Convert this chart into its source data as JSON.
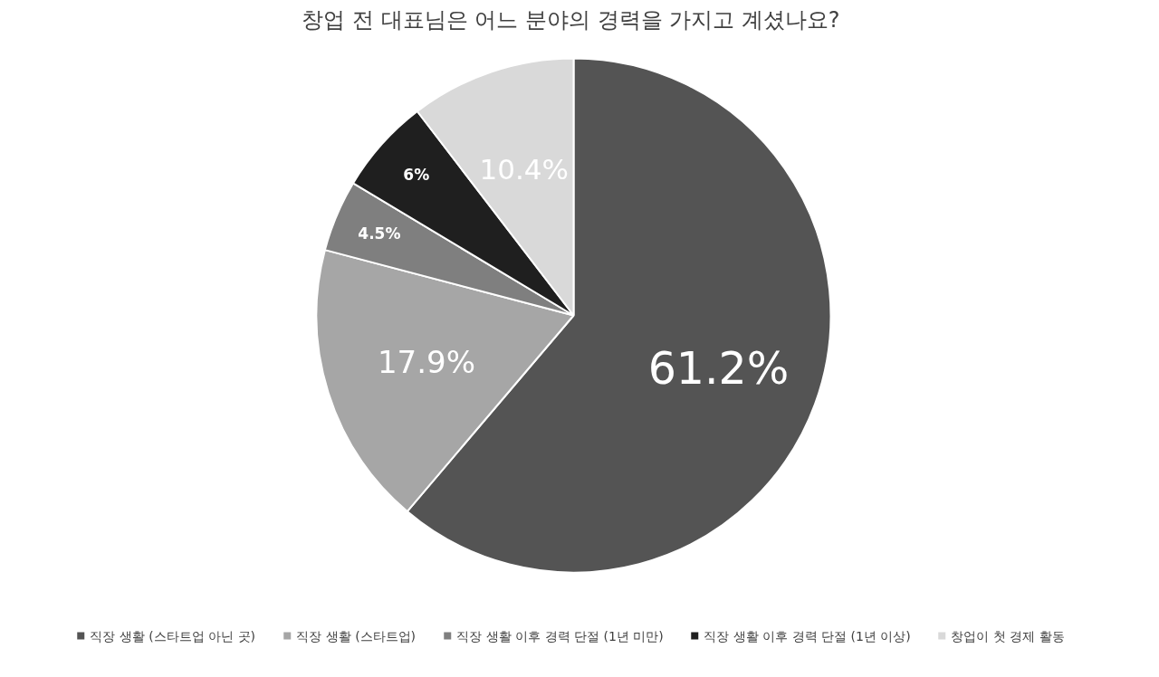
{
  "chart_data": {
    "type": "pie",
    "title": "창업 전 대표님은 어느 분야의 경력을 가지고 계셨나요?",
    "categories": [
      "직장 생활 (스타트업 아닌 곳)",
      "직장 생활 (스타트업)",
      "직장 생활 이후 경력 단절 (1년 미만)",
      "직장 생활 이후 경력 단절 (1년 이상)",
      "창업이 첫 경제 활동"
    ],
    "values": [
      61.2,
      17.9,
      4.5,
      6,
      10.4
    ],
    "colors": [
      "#545454",
      "#a6a6a6",
      "#7f7f7f",
      "#1f1f1f",
      "#d9d9d9"
    ],
    "value_labels": [
      "61.2%",
      "17.9%",
      "4.5%",
      "6%",
      "10.4%"
    ],
    "legend": "bottom"
  }
}
